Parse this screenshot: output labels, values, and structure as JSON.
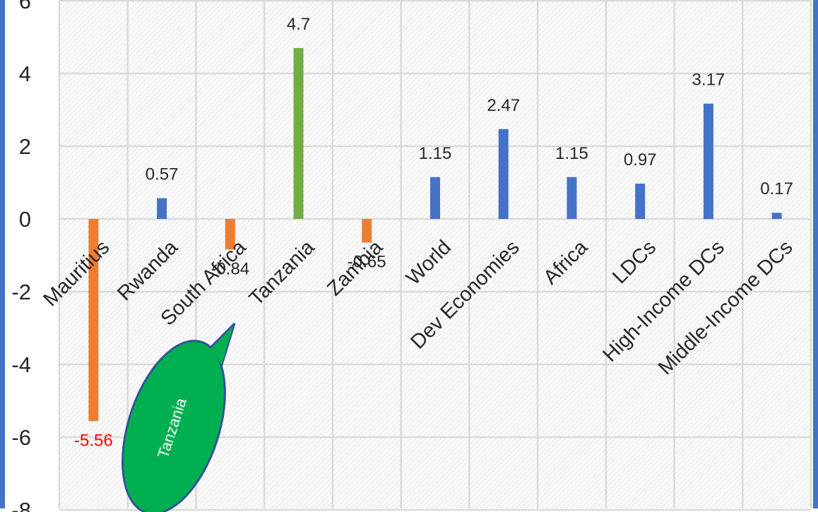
{
  "chart_data": {
    "type": "bar",
    "categories": [
      "Mauritius",
      "Rwanda",
      "South Africa",
      "Tanzania",
      "Zambia",
      "World",
      "Dev Economies",
      "Africa",
      "LDCs",
      "High-Income DCs",
      "Middle-Income DCs"
    ],
    "values": [
      -5.56,
      0.57,
      -0.84,
      4.7,
      -0.65,
      1.15,
      2.47,
      1.15,
      0.97,
      3.17,
      0.17
    ],
    "data_labels": [
      "-5.56",
      "0.57",
      "-0.84",
      "4.7",
      "-0.65",
      "1.15",
      "2.47",
      "1.15",
      "0.97",
      "3.17",
      "0.17"
    ],
    "bar_colors": [
      "#ED7D31",
      "#4472C4",
      "#ED7D31",
      "#70AD47",
      "#ED7D31",
      "#4472C4",
      "#4472C4",
      "#4472C4",
      "#4472C4",
      "#4472C4",
      "#4472C4"
    ],
    "data_label_colors": [
      "#FF0000",
      "#262626",
      "#262626",
      "#262626",
      "#262626",
      "#262626",
      "#262626",
      "#262626",
      "#262626",
      "#262626",
      "#262626"
    ],
    "y_ticks": [
      6,
      4,
      2,
      0,
      -2,
      -4,
      -6,
      -8
    ],
    "ylim": [
      -8,
      6
    ],
    "grid": true,
    "frame_color": "#4472C4",
    "callout": {
      "text": "Tanzania",
      "fill": "#00B050",
      "stroke": "#2F5597",
      "text_color": "#ffffff"
    }
  }
}
